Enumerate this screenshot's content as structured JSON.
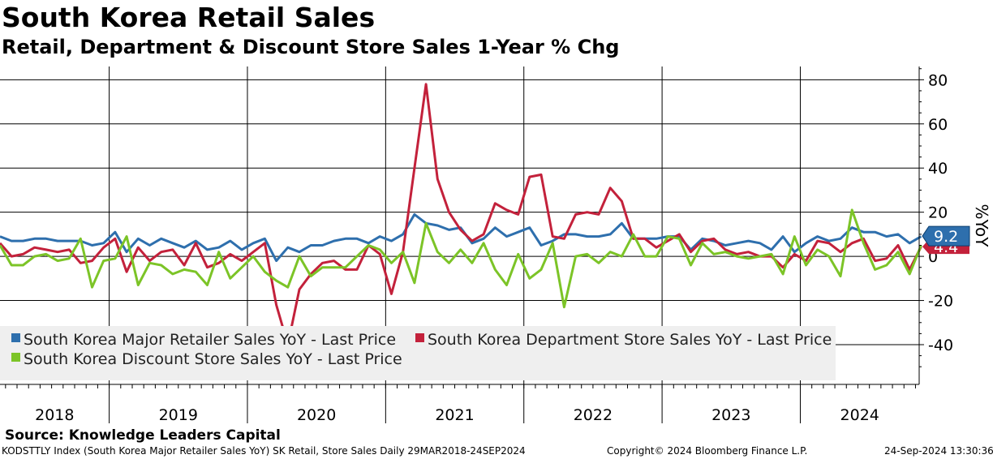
{
  "title": "South Korea Retail Sales",
  "subtitle": "Retail, Department & Discount Store Sales 1-Year % Chg",
  "source": "Source: Knowledge Leaders Capital",
  "footer": {
    "left": "KODSTTLY Index (South Korea Major Retailer Sales YoY) SK Retail, Store Sales  Daily 29MAR2018-24SEP2024",
    "center": "Copyright© 2024 Bloomberg Finance L.P.",
    "right": "24-Sep-2024 13:30:36"
  },
  "chart_data": {
    "type": "line",
    "ylabel": "%YoY",
    "ylim": [
      -58,
      86
    ],
    "yticks": [
      80,
      60,
      40,
      20,
      0,
      -20,
      -40
    ],
    "ytick_labels": [
      "80",
      "60",
      "40",
      "20",
      "0",
      "-20",
      "-40"
    ],
    "xlim": [
      2018.21,
      2024.86
    ],
    "xtick_years": [
      2018,
      2019,
      2020,
      2021,
      2022,
      2023,
      2024
    ],
    "xtick_labels": [
      "2018",
      "2019",
      "2020",
      "2021",
      "2022",
      "2023",
      "2024"
    ],
    "grid": true,
    "legend_position": "bottom-left",
    "series": [
      {
        "name": "South Korea Major Retailer Sales YoY - Last Price",
        "color": "#2e6fad",
        "last_value": 9.2,
        "last_label": "9.2",
        "start": 2018.21,
        "step": 0.0833,
        "values": [
          9,
          7,
          7,
          8,
          8,
          7,
          7,
          7,
          5,
          6,
          11,
          2,
          8,
          5,
          8,
          6,
          4,
          7,
          3,
          4,
          7,
          3,
          6,
          8,
          -2,
          4,
          2,
          5,
          5,
          7,
          8,
          8,
          6,
          9,
          7,
          10,
          19,
          15,
          14,
          12,
          13,
          6,
          8,
          13,
          9,
          11,
          13,
          5,
          7,
          10,
          10,
          9,
          9,
          10,
          15,
          8,
          8,
          8,
          9,
          9,
          3,
          8,
          7,
          5,
          6,
          7,
          6,
          3,
          9,
          2,
          6,
          9,
          7,
          8,
          13,
          11,
          11,
          9,
          10,
          6,
          9
        ]
      },
      {
        "name": "South Korea Department Store Sales YoY - Last Price",
        "color": "#c3213b",
        "last_value": 4.4,
        "last_label": "4.4",
        "start": 2018.21,
        "step": 0.0833,
        "values": [
          6,
          0,
          1,
          4,
          3,
          2,
          3,
          -3,
          -2,
          4,
          8,
          -7,
          4,
          -2,
          2,
          3,
          -4,
          6,
          -5,
          -3,
          1,
          -2,
          2,
          6,
          -22,
          -40,
          -15,
          -8,
          -3,
          -2,
          -6,
          -6,
          5,
          1,
          -17,
          2,
          40,
          78,
          35,
          20,
          12,
          7,
          10,
          24,
          21,
          19,
          36,
          37,
          9,
          8,
          19,
          20,
          19,
          31,
          25,
          8,
          8,
          4,
          7,
          10,
          2,
          7,
          8,
          3,
          1,
          2,
          0,
          0,
          -5,
          1,
          -2,
          7,
          6,
          2,
          6,
          8,
          -2,
          -1,
          5,
          -6,
          4.4
        ]
      },
      {
        "name": "South Korea Discount Store Sales YoY - Last Price",
        "color": "#7cc427",
        "last_value": 5.0,
        "last_label": "",
        "start": 2018.21,
        "step": 0.0833,
        "values": [
          5,
          -4,
          -4,
          0,
          1,
          -2,
          -1,
          8,
          -14,
          -2,
          -1,
          9,
          -13,
          -3,
          -4,
          -8,
          -6,
          -7,
          -13,
          2,
          -10,
          -5,
          0,
          -7,
          -11,
          -14,
          0,
          -9,
          -5,
          -5,
          -5,
          0,
          5,
          3,
          -3,
          2,
          -12,
          15,
          2,
          -3,
          3,
          -3,
          6,
          -6,
          -13,
          1,
          -10,
          -6,
          6,
          -23,
          0,
          1,
          -3,
          2,
          0,
          10,
          0,
          0,
          9,
          8,
          -4,
          6,
          1,
          2,
          0,
          -1,
          0,
          1,
          -8,
          9,
          -4,
          3,
          0,
          -9,
          21,
          6,
          -6,
          -4,
          2,
          -8,
          5
        ]
      }
    ]
  }
}
